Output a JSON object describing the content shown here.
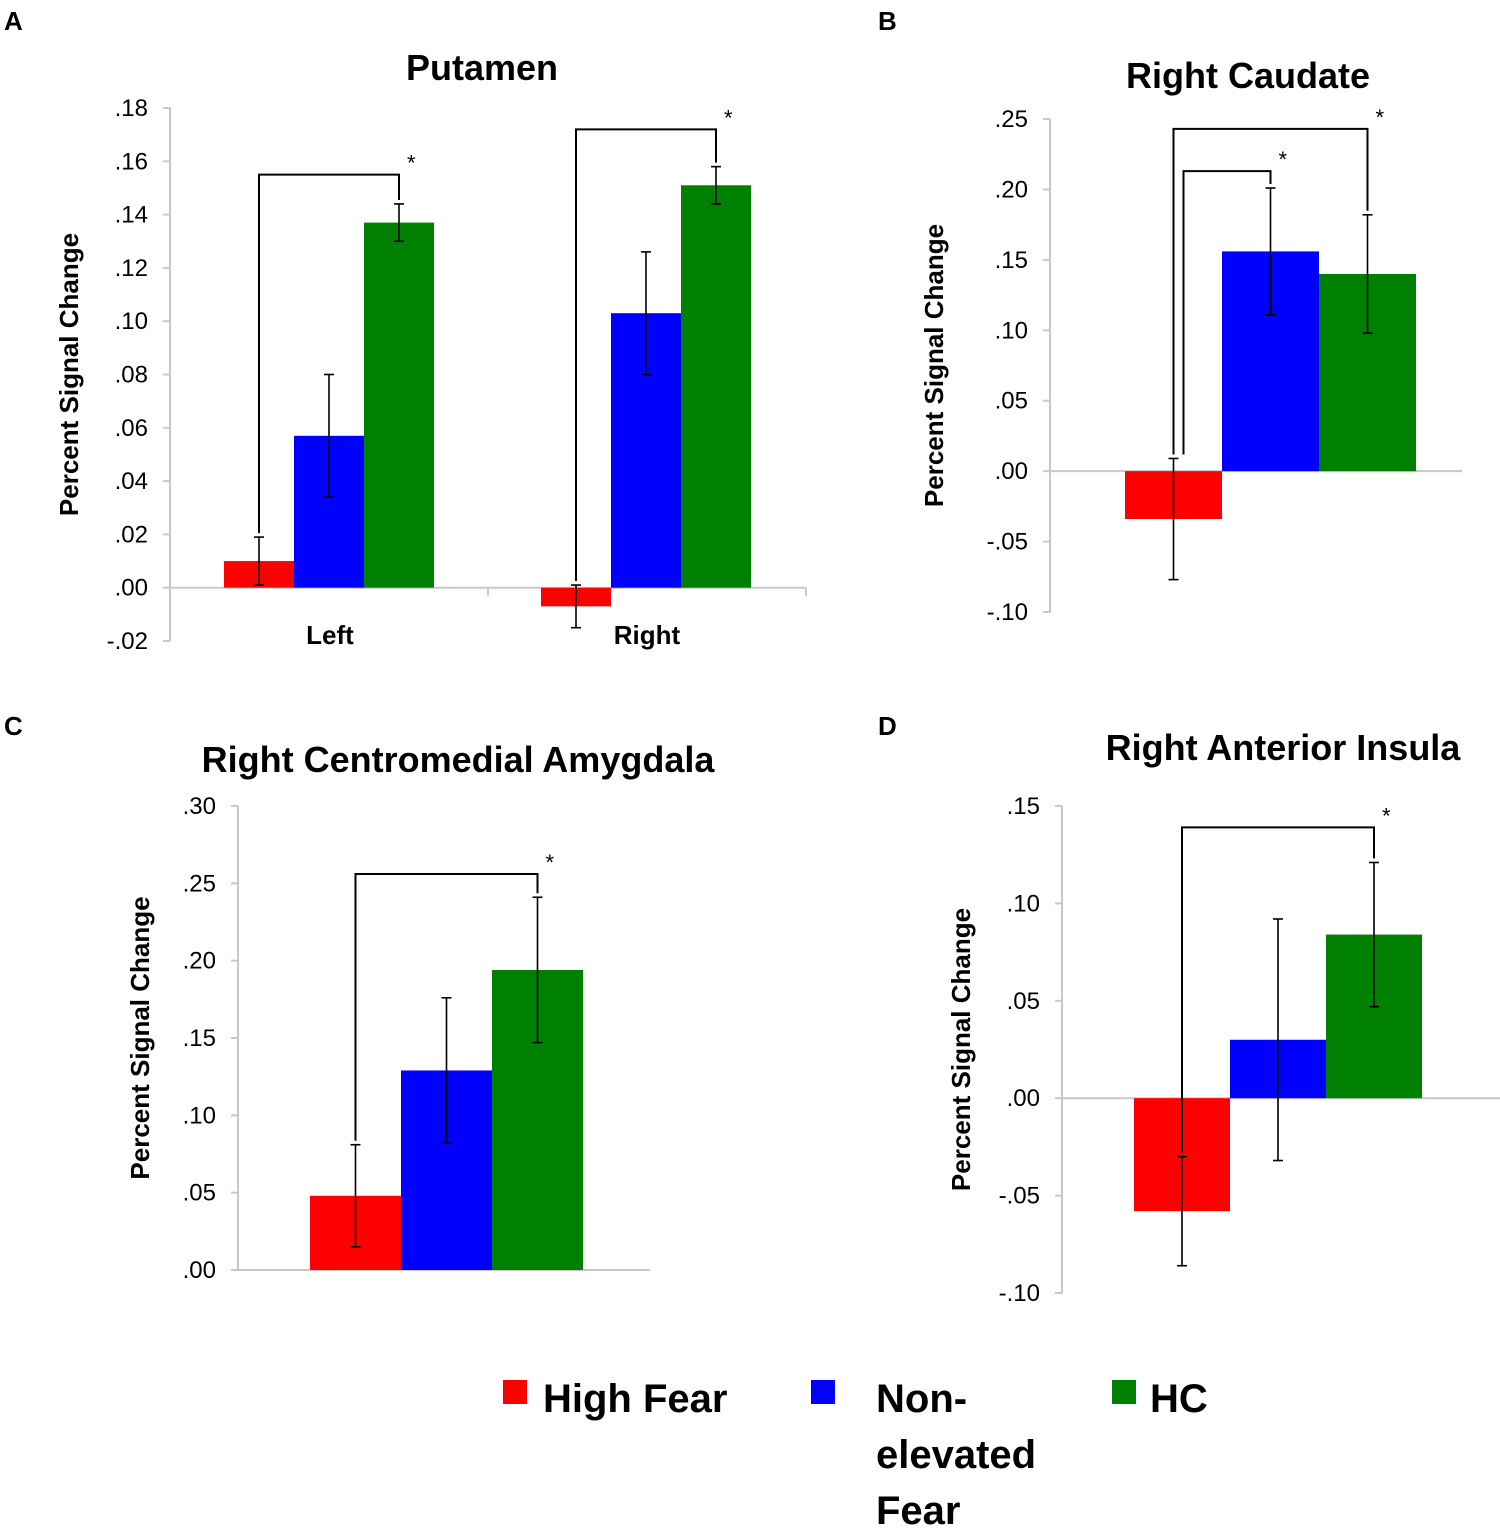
{
  "colors": {
    "High Fear": "#ff0000",
    "Non-elevated Fear": "#0000ff",
    "HC": "#008000"
  },
  "legend": {
    "items": [
      {
        "label": "High Fear",
        "lines": [
          "High Fear"
        ],
        "color": "#ff0000"
      },
      {
        "label": "Non-elevated Fear",
        "lines": [
          "Non-",
          "elevated",
          "Fear"
        ],
        "color": "#0000ff"
      },
      {
        "label": "HC",
        "lines": [
          "HC"
        ],
        "color": "#008000"
      }
    ]
  },
  "chart_data": [
    {
      "panel": "A",
      "type": "bar",
      "title": "Putamen",
      "ylabel": "Percent Signal Change",
      "xlabel": "",
      "ylim": [
        -0.02,
        0.18
      ],
      "yticks": [
        0.18,
        0.16,
        0.14,
        0.12,
        0.1,
        0.08,
        0.06,
        0.04,
        0.02,
        0.0,
        -0.02
      ],
      "ytick_labels": [
        ".18",
        ".16",
        ".14",
        ".12",
        ".10",
        ".08",
        ".06",
        ".04",
        ".02",
        ".00",
        "-.02"
      ],
      "categories": [
        "Left",
        "Right"
      ],
      "series": [
        {
          "name": "High Fear",
          "values": [
            0.01,
            -0.007
          ],
          "errors": [
            0.009,
            0.008
          ]
        },
        {
          "name": "Non-elevated Fear",
          "values": [
            0.057,
            0.103
          ],
          "errors": [
            0.023,
            0.023
          ]
        },
        {
          "name": "HC",
          "values": [
            0.137,
            0.151
          ],
          "errors": [
            0.007,
            0.007
          ]
        }
      ],
      "significance": [
        {
          "from": [
            0,
            0
          ],
          "to": [
            0,
            2
          ],
          "top": 0.155,
          "label": "*"
        },
        {
          "from": [
            1,
            0
          ],
          "to": [
            1,
            2
          ],
          "top": 0.172,
          "label": "*"
        }
      ]
    },
    {
      "panel": "B",
      "type": "bar",
      "title": "Right Caudate",
      "ylabel": "Percent Signal Change",
      "xlabel": "",
      "ylim": [
        -0.1,
        0.25
      ],
      "yticks": [
        0.25,
        0.2,
        0.15,
        0.1,
        0.05,
        0.0,
        -0.05,
        -0.1
      ],
      "ytick_labels": [
        ".25",
        ".20",
        ".15",
        ".10",
        ".05",
        ".00",
        "-.05",
        "-.10"
      ],
      "categories": [
        ""
      ],
      "series": [
        {
          "name": "High Fear",
          "values": [
            -0.034
          ],
          "errors": [
            0.043
          ]
        },
        {
          "name": "Non-elevated Fear",
          "values": [
            0.156
          ],
          "errors": [
            0.045
          ]
        },
        {
          "name": "HC",
          "values": [
            0.14
          ],
          "errors": [
            0.042
          ]
        }
      ],
      "significance": [
        {
          "from": [
            0,
            0
          ],
          "to": [
            0,
            1
          ],
          "top": 0.213,
          "label": "*"
        },
        {
          "from": [
            0,
            0
          ],
          "to": [
            0,
            2
          ],
          "top": 0.243,
          "label": "*"
        }
      ]
    },
    {
      "panel": "C",
      "type": "bar",
      "title": "Right Centromedial Amygdala",
      "ylabel": "Percent Signal Change",
      "xlabel": "",
      "ylim": [
        0.0,
        0.3
      ],
      "yticks": [
        0.3,
        0.25,
        0.2,
        0.15,
        0.1,
        0.05,
        0.0
      ],
      "ytick_labels": [
        ".30",
        ".25",
        ".20",
        ".15",
        ".10",
        ".05",
        ".00"
      ],
      "categories": [
        ""
      ],
      "series": [
        {
          "name": "High Fear",
          "values": [
            0.048
          ],
          "errors": [
            0.033
          ]
        },
        {
          "name": "Non-elevated Fear",
          "values": [
            0.129
          ],
          "errors": [
            0.047
          ]
        },
        {
          "name": "HC",
          "values": [
            0.194
          ],
          "errors": [
            0.047
          ]
        }
      ],
      "significance": [
        {
          "from": [
            0,
            0
          ],
          "to": [
            0,
            2
          ],
          "top": 0.256,
          "label": "*"
        }
      ]
    },
    {
      "panel": "D",
      "type": "bar",
      "title": "Right Anterior Insula",
      "ylabel": "Percent Signal Change",
      "xlabel": "",
      "ylim": [
        -0.1,
        0.15
      ],
      "yticks": [
        0.15,
        0.1,
        0.05,
        0.0,
        -0.05,
        -0.1
      ],
      "ytick_labels": [
        ".15",
        ".10",
        ".05",
        ".00",
        "-.05",
        "-.10"
      ],
      "categories": [
        ""
      ],
      "series": [
        {
          "name": "High Fear",
          "values": [
            -0.058
          ],
          "errors": [
            0.028
          ]
        },
        {
          "name": "Non-elevated Fear",
          "values": [
            0.03
          ],
          "errors": [
            0.062
          ]
        },
        {
          "name": "HC",
          "values": [
            0.084
          ],
          "errors": [
            0.037
          ]
        }
      ],
      "significance": [
        {
          "from": [
            0,
            0
          ],
          "to": [
            0,
            2
          ],
          "top": 0.139,
          "label": "*"
        }
      ]
    }
  ]
}
